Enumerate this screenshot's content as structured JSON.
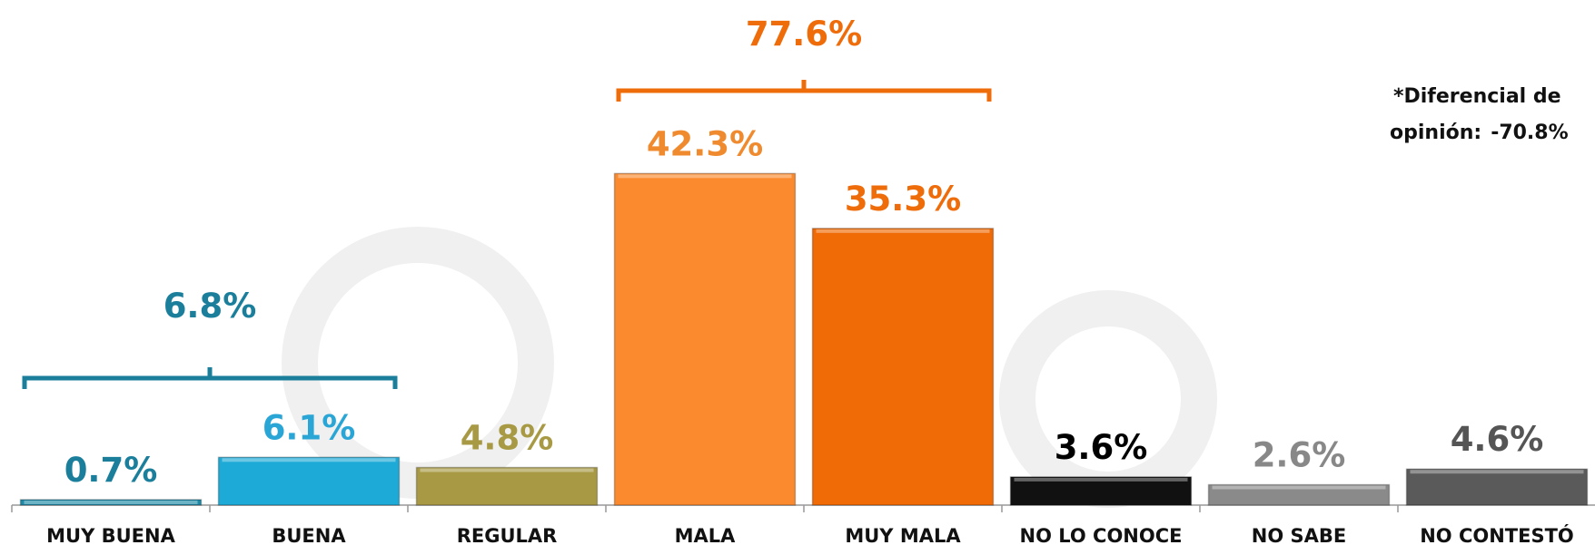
{
  "chart_data": {
    "type": "bar",
    "categories": [
      "MUY BUENA",
      "BUENA",
      "REGULAR",
      "MALA",
      "MUY MALA",
      "NO LO CONOCE",
      "NO SABE",
      "NO CONTESTÓ"
    ],
    "values": [
      0.7,
      6.1,
      4.8,
      42.3,
      35.3,
      3.6,
      2.6,
      4.6
    ],
    "value_labels": [
      "0.7%",
      "6.1%",
      "4.8%",
      "42.3%",
      "35.3%",
      "3.6%",
      "2.6%",
      "4.6%"
    ],
    "colors": [
      "#1f8aa8",
      "#1eaad6",
      "#a89a45",
      "#fb8a2e",
      "#f06a06",
      "#111111",
      "#8a8a8a",
      "#5a5a5a"
    ],
    "label_colors": [
      "#1b7f9c",
      "#2aa6d6",
      "#a89a45",
      "#f08a2e",
      "#ef6c0a",
      "#000000",
      "#888888",
      "#555555"
    ],
    "ylim": [
      0,
      45
    ],
    "groups": [
      {
        "categories": [
          "MUY BUENA",
          "BUENA"
        ],
        "value": 6.8,
        "value_label": "6.8%",
        "color": "#1b7f9c"
      },
      {
        "categories": [
          "MALA",
          "MUY MALA"
        ],
        "value": 77.6,
        "value_label": "77.6%",
        "color": "#ef6c0a"
      }
    ],
    "annotation": {
      "lines": [
        "*Diferencial de",
        "opinión:"
      ],
      "value": -70.8,
      "value_label": "-70.8%",
      "color": "#ff0000"
    }
  }
}
